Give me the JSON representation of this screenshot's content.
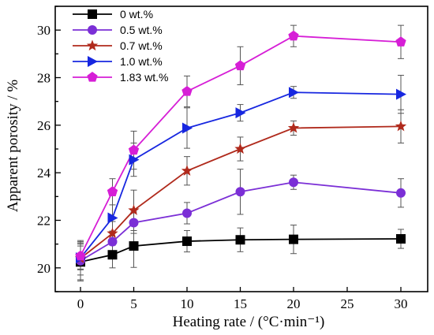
{
  "chart_data": {
    "type": "line",
    "xlabel": "Heating rate / (°C·min⁻¹)",
    "ylabel": "Apparent porosity / %",
    "xlim": [
      -2,
      32
    ],
    "ylim": [
      19,
      31
    ],
    "xticks": [
      0,
      5,
      10,
      15,
      20,
      25,
      30
    ],
    "yticks": [
      20,
      22,
      24,
      26,
      28,
      30
    ],
    "legend_position": "top-left",
    "grid": false,
    "x_scale": "piecewise: 0-20 linear, 20-30 compressed",
    "series": [
      {
        "name": "0 wt.%",
        "color": "#000000",
        "marker": "square",
        "x": [
          0,
          3,
          5,
          10,
          15,
          20,
          30
        ],
        "y": [
          20.25,
          20.55,
          20.92,
          21.12,
          21.18,
          21.2,
          21.22
        ],
        "err": [
          0.75,
          0.55,
          0.9,
          0.45,
          0.5,
          0.6,
          0.4
        ]
      },
      {
        "name": "0.5 wt.%",
        "color": "#7b2fd6",
        "marker": "circle",
        "x": [
          0,
          3,
          5,
          10,
          15,
          20,
          30
        ],
        "y": [
          20.3,
          21.1,
          21.9,
          22.3,
          23.2,
          23.6,
          23.15
        ],
        "err": [
          0.85,
          0.45,
          0.45,
          0.45,
          0.95,
          0.3,
          0.6
        ]
      },
      {
        "name": "0.7 wt.%",
        "color": "#b02a1c",
        "marker": "star",
        "x": [
          0,
          3,
          5,
          10,
          15,
          20,
          30
        ],
        "y": [
          20.4,
          21.45,
          22.42,
          24.08,
          25.0,
          25.88,
          25.95
        ],
        "err": [
          0.7,
          0.5,
          0.85,
          0.6,
          0.5,
          0.3,
          0.7
        ]
      },
      {
        "name": "1.0 wt.%",
        "color": "#1727e0",
        "marker": "triangle-right",
        "x": [
          0,
          3,
          5,
          10,
          15,
          20,
          30
        ],
        "y": [
          20.42,
          22.1,
          24.55,
          25.88,
          26.52,
          27.38,
          27.3
        ],
        "err": [
          0.5,
          1.05,
          0.7,
          0.85,
          0.35,
          0.25,
          0.8
        ]
      },
      {
        "name": "1.83 wt.%",
        "color": "#d61ed6",
        "marker": "pentagon",
        "x": [
          0,
          3,
          5,
          10,
          15,
          20,
          30
        ],
        "y": [
          20.5,
          23.2,
          24.95,
          27.42,
          28.5,
          29.75,
          29.5
        ],
        "err": [
          0.55,
          0.55,
          0.8,
          0.65,
          0.8,
          0.45,
          0.7
        ]
      }
    ]
  }
}
